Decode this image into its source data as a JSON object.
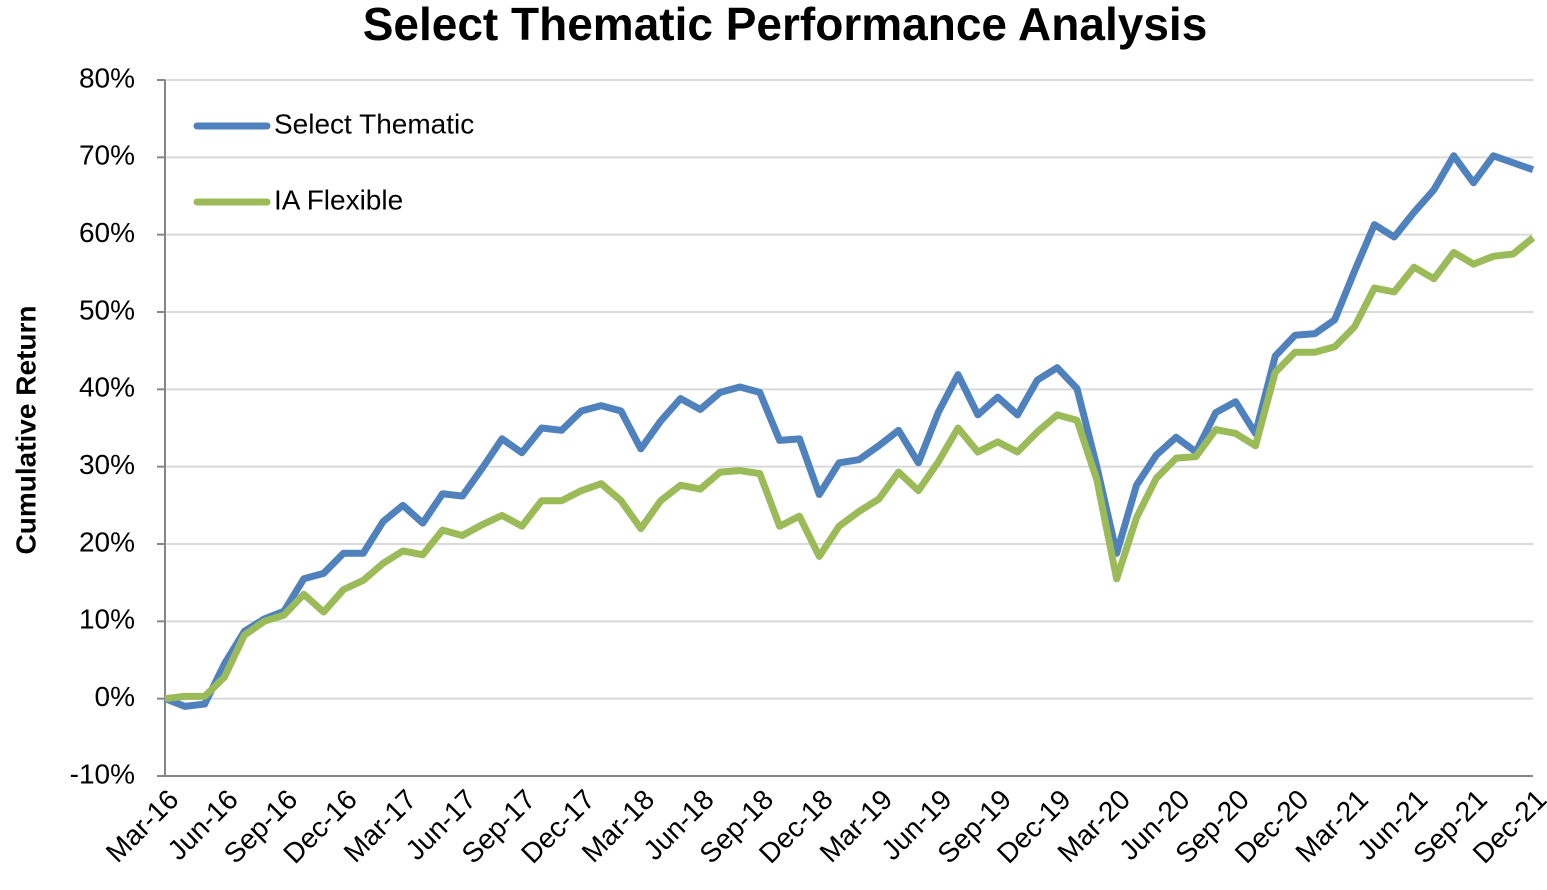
{
  "chart_data": {
    "type": "line",
    "title": "Select Thematic Performance Analysis",
    "y_label": "Cumulative Return",
    "categories": [
      "Mar-16",
      null,
      null,
      "Jun-16",
      null,
      null,
      "Sep-16",
      null,
      null,
      "Dec-16",
      null,
      null,
      "Mar-17",
      null,
      null,
      "Jun-17",
      null,
      null,
      "Sep-17",
      null,
      null,
      "Dec-17",
      null,
      null,
      "Mar-18",
      null,
      null,
      "Jun-18",
      null,
      null,
      "Sep-18",
      null,
      null,
      "Dec-18",
      null,
      null,
      "Mar-19",
      null,
      null,
      "Jun-19",
      null,
      null,
      "Sep-19",
      null,
      null,
      "Dec-19",
      null,
      null,
      "Mar-20",
      null,
      null,
      "Jun-20",
      null,
      null,
      "Sep-20",
      null,
      null,
      "Dec-20",
      null,
      null,
      "Mar-21",
      null,
      null,
      "Jun-21",
      null,
      null,
      "Sep-21",
      null,
      null,
      "Dec-21"
    ],
    "series": [
      {
        "name": "Select Thematic",
        "color": "#4f81bd",
        "values": [
          0,
          -1,
          -0.7,
          4.5,
          8.7,
          10.3,
          11.3,
          15.5,
          16.2,
          18.8,
          18.8,
          22.9,
          25.0,
          22.7,
          26.5,
          26.2,
          29.8,
          33.6,
          31.8,
          35.0,
          34.7,
          37.2,
          37.9,
          37.2,
          32.3,
          35.9,
          38.8,
          37.4,
          39.6,
          40.3,
          39.6,
          33.4,
          33.6,
          26.4,
          30.5,
          30.9,
          32.7,
          34.7,
          30.5,
          37.0,
          41.9,
          36.7,
          39.0,
          36.7,
          41.2,
          42.8,
          40.1,
          30.0,
          18.8,
          27.6,
          31.5,
          33.8,
          31.9,
          37.0,
          38.4,
          34.3,
          44.3,
          47.0,
          47.2,
          49.0,
          55.3,
          61.3,
          59.7,
          62.9,
          65.8,
          70.2,
          66.7,
          70.2,
          69.3,
          68.4
        ]
      },
      {
        "name": "IA Flexible",
        "color": "#9bbb59",
        "values": [
          0,
          0.3,
          0.3,
          2.8,
          8.2,
          10.0,
          10.8,
          13.5,
          11.2,
          14.1,
          15.3,
          17.5,
          19.1,
          18.6,
          21.8,
          21.1,
          22.5,
          23.7,
          22.3,
          25.6,
          25.6,
          26.9,
          27.8,
          25.6,
          22.0,
          25.6,
          27.6,
          27.1,
          29.3,
          29.5,
          29.1,
          22.3,
          23.6,
          18.4,
          22.3,
          24.2,
          25.8,
          29.3,
          26.9,
          30.6,
          35.0,
          31.9,
          33.2,
          31.9,
          34.5,
          36.7,
          36.0,
          28.3,
          15.5,
          23.4,
          28.5,
          31.1,
          31.3,
          34.8,
          34.3,
          32.7,
          42.2,
          44.8,
          44.8,
          45.5,
          48.1,
          53.1,
          52.6,
          55.8,
          54.3,
          57.7,
          56.2,
          57.2,
          57.5,
          59.6
        ]
      }
    ],
    "ylim": [
      -10,
      80
    ],
    "yticks": [
      {
        "value": -10,
        "label": "-10%"
      },
      {
        "value": 0,
        "label": "0%"
      },
      {
        "value": 10,
        "label": "10%"
      },
      {
        "value": 20,
        "label": "20%"
      },
      {
        "value": 30,
        "label": "30%"
      },
      {
        "value": 40,
        "label": "40%"
      },
      {
        "value": 50,
        "label": "50%"
      },
      {
        "value": 60,
        "label": "60%"
      },
      {
        "value": 70,
        "label": "70%"
      },
      {
        "value": 80,
        "label": "80%"
      }
    ],
    "grid": true,
    "legend": "top-left"
  }
}
